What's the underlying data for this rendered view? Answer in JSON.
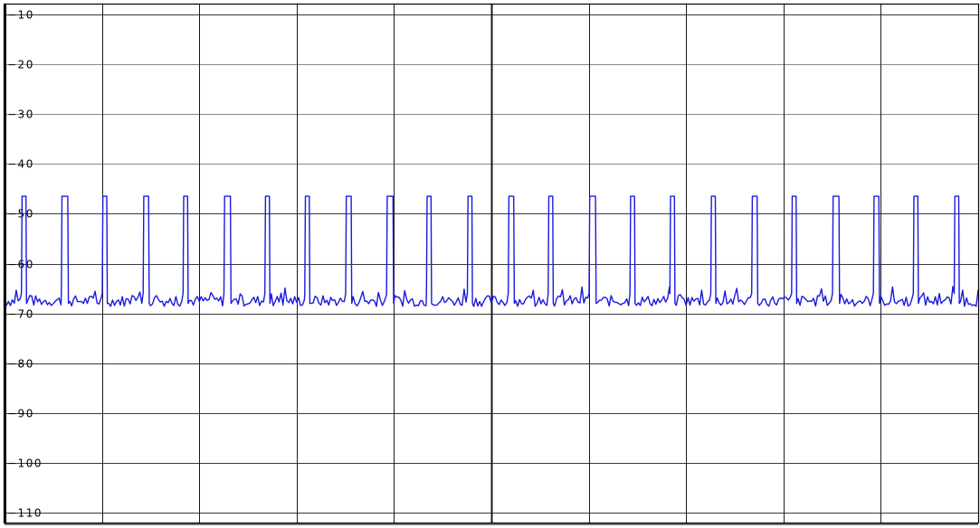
{
  "chart_data": {
    "type": "line",
    "title": "",
    "xlabel": "",
    "ylabel": "",
    "ylim": [
      -112,
      -8
    ],
    "xlim": [
      0,
      1000
    ],
    "y_ticks": [
      {
        "value": -10,
        "label": "−10"
      },
      {
        "value": -20,
        "label": "−20"
      },
      {
        "value": -30,
        "label": "−30"
      },
      {
        "value": -40,
        "label": "−40"
      },
      {
        "value": -50,
        "label": "−50"
      },
      {
        "value": -60,
        "label": "−60"
      },
      {
        "value": -70,
        "label": "−70"
      },
      {
        "value": -80,
        "label": "−80"
      },
      {
        "value": -90,
        "label": "−90"
      },
      {
        "value": -100,
        "label": "−100"
      },
      {
        "value": -110,
        "label": "−110"
      }
    ],
    "x_divisions": 10,
    "grid": true,
    "baseline_level": -67.5,
    "pulse_level": -46.5,
    "pulses": [
      {
        "start": 18,
        "width": 4
      },
      {
        "start": 59,
        "width": 6
      },
      {
        "start": 101,
        "width": 4
      },
      {
        "start": 143,
        "width": 5
      },
      {
        "start": 184,
        "width": 4
      },
      {
        "start": 226,
        "width": 6
      },
      {
        "start": 268,
        "width": 4
      },
      {
        "start": 309,
        "width": 4
      },
      {
        "start": 351,
        "width": 5
      },
      {
        "start": 393,
        "width": 6
      },
      {
        "start": 434,
        "width": 4
      },
      {
        "start": 476,
        "width": 4
      },
      {
        "start": 518,
        "width": 5
      },
      {
        "start": 559,
        "width": 4
      },
      {
        "start": 601,
        "width": 6
      },
      {
        "start": 643,
        "width": 4
      },
      {
        "start": 684,
        "width": 4
      },
      {
        "start": 726,
        "width": 4
      },
      {
        "start": 768,
        "width": 5
      },
      {
        "start": 809,
        "width": 4
      },
      {
        "start": 851,
        "width": 6
      },
      {
        "start": 893,
        "width": 5
      },
      {
        "start": 934,
        "width": 4
      },
      {
        "start": 976,
        "width": 4
      }
    ],
    "series": [
      {
        "color": "#1a1adf"
      }
    ]
  }
}
